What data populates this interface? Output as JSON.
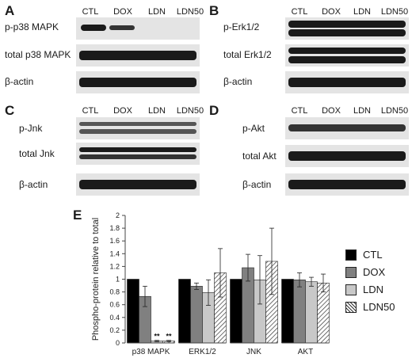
{
  "panels": {
    "A": {
      "letter": "A",
      "lanes": [
        "CTL",
        "DOX",
        "LDN",
        "LDN50"
      ],
      "rows": [
        "p-p38 MAPK",
        "total p38 MAPK",
        "β-actin"
      ]
    },
    "B": {
      "letter": "B",
      "lanes": [
        "CTL",
        "DOX",
        "LDN",
        "LDN50"
      ],
      "rows": [
        "p-Erk1/2",
        "total Erk1/2",
        "β-actin"
      ]
    },
    "C": {
      "letter": "C",
      "lanes": [
        "CTL",
        "DOX",
        "LDN",
        "LDN50"
      ],
      "rows": [
        "p-Jnk",
        "total Jnk",
        "β-actin"
      ]
    },
    "D": {
      "letter": "D",
      "lanes": [
        "CTL",
        "DOX",
        "LDN",
        "LDN50"
      ],
      "rows": [
        "p-Akt",
        "total Akt",
        "β-actin"
      ]
    }
  },
  "colors": {
    "CTL": "#000000",
    "DOX": "#808080",
    "LDN": "#c8c8c8",
    "LDN50": "hatched"
  },
  "chart_data": {
    "type": "bar",
    "panel_letter": "E",
    "title": "",
    "ylabel": "Phospho-protein relative to total",
    "xlabel": "",
    "ylim": [
      0,
      2
    ],
    "yticks": [
      "0",
      "0.2",
      "0.4",
      "0.6",
      "0.8",
      "1",
      "1.2",
      "1.4",
      "1.6",
      "1.8",
      "2"
    ],
    "categories": [
      "p38 MAPK",
      "ERK1/2",
      "JNK",
      "AKT"
    ],
    "series": [
      {
        "name": "CTL",
        "values": [
          1.0,
          1.0,
          1.0,
          1.0
        ],
        "errors": [
          0,
          0,
          0,
          0
        ]
      },
      {
        "name": "DOX",
        "values": [
          0.73,
          0.89,
          1.18,
          0.99
        ],
        "errors": [
          0.16,
          0.05,
          0.21,
          0.11
        ]
      },
      {
        "name": "LDN",
        "values": [
          0.03,
          0.79,
          0.99,
          0.96
        ],
        "errors": [
          0.01,
          0.2,
          0.38,
          0.07
        ]
      },
      {
        "name": "LDN50",
        "values": [
          0.03,
          1.1,
          1.28,
          0.94
        ],
        "errors": [
          0.01,
          0.38,
          0.52,
          0.14
        ]
      }
    ],
    "annotations": [
      {
        "category": "p38 MAPK",
        "series": "LDN",
        "text": "**"
      },
      {
        "category": "p38 MAPK",
        "series": "LDN50",
        "text": "**"
      }
    ],
    "legend_position": "right",
    "grid": false
  }
}
